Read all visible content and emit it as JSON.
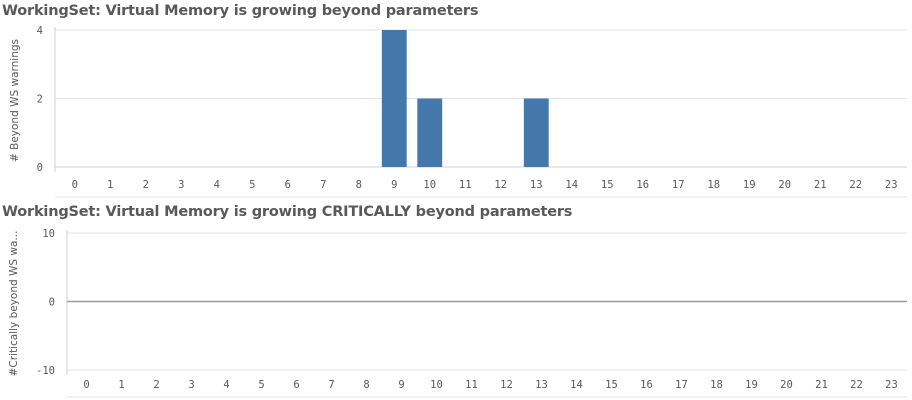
{
  "chart_data": [
    {
      "type": "bar",
      "title": "WorkingSet: Virtual Memory is growing beyond parameters",
      "xlabel": "",
      "ylabel": "# Beyond WS warnings",
      "categories": [
        "0",
        "1",
        "2",
        "3",
        "4",
        "5",
        "6",
        "7",
        "8",
        "9",
        "10",
        "11",
        "12",
        "13",
        "14",
        "15",
        "16",
        "17",
        "18",
        "19",
        "20",
        "21",
        "22",
        "23"
      ],
      "values": [
        0,
        0,
        0,
        0,
        0,
        0,
        0,
        0,
        0,
        4,
        2,
        0,
        0,
        2,
        0,
        0,
        0,
        0,
        0,
        0,
        0,
        0,
        0,
        0
      ],
      "yticks": [
        "0",
        "2",
        "4"
      ],
      "ylim": [
        0,
        4
      ],
      "grid": true,
      "bar_color": "#4477aa"
    },
    {
      "type": "bar",
      "title": "WorkingSet: Virtual Memory is growing CRITICALLY beyond parameters",
      "xlabel": "",
      "ylabel": "#Critically beyond WS wa...",
      "categories": [
        "0",
        "1",
        "2",
        "3",
        "4",
        "5",
        "6",
        "7",
        "8",
        "9",
        "10",
        "11",
        "12",
        "13",
        "14",
        "15",
        "16",
        "17",
        "18",
        "19",
        "20",
        "21",
        "22",
        "23"
      ],
      "values": [
        0,
        0,
        0,
        0,
        0,
        0,
        0,
        0,
        0,
        0,
        0,
        0,
        0,
        0,
        0,
        0,
        0,
        0,
        0,
        0,
        0,
        0,
        0,
        0
      ],
      "yticks": [
        "-10",
        "0",
        "10"
      ],
      "ylim": [
        -10,
        10
      ],
      "grid": true,
      "bar_color": "#4477aa"
    }
  ]
}
